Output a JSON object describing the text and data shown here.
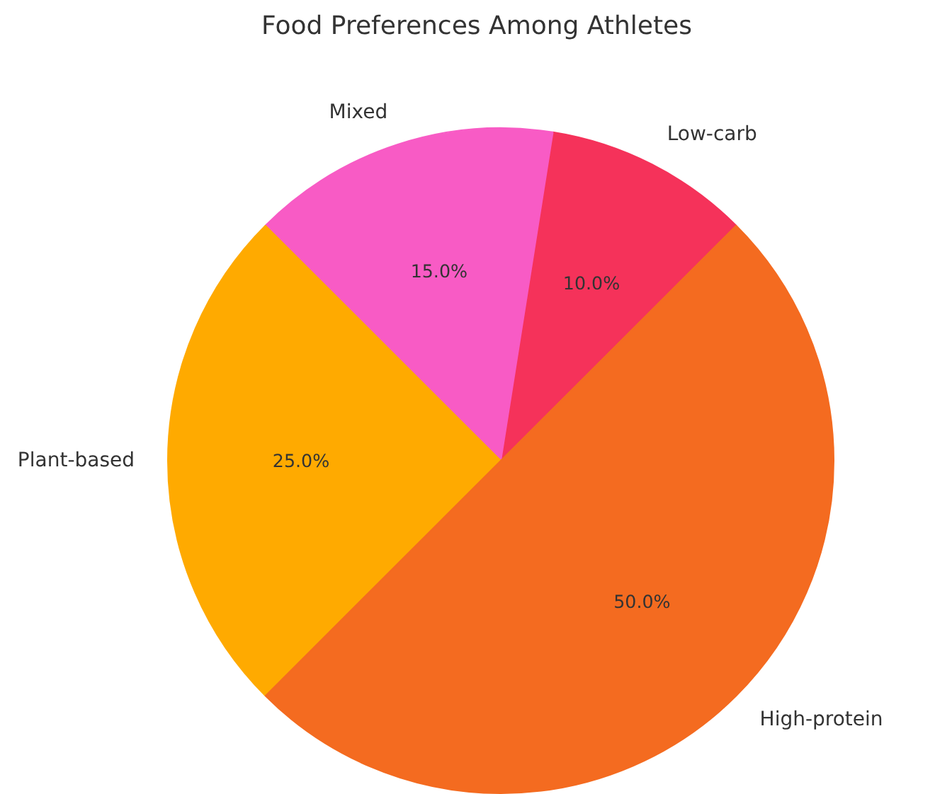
{
  "chart_data": {
    "type": "pie",
    "title": "Food Preferences Among Athletes",
    "categories": [
      "Low-carb",
      "Mixed",
      "Plant-based",
      "High-protein"
    ],
    "values": [
      10,
      15,
      25,
      50
    ],
    "colors": [
      "#f5325a",
      "#f85bc5",
      "#ffaa00",
      "#f46b20"
    ],
    "value_labels": [
      "10.0%",
      "15.0%",
      "25.0%",
      "50.0%"
    ]
  }
}
